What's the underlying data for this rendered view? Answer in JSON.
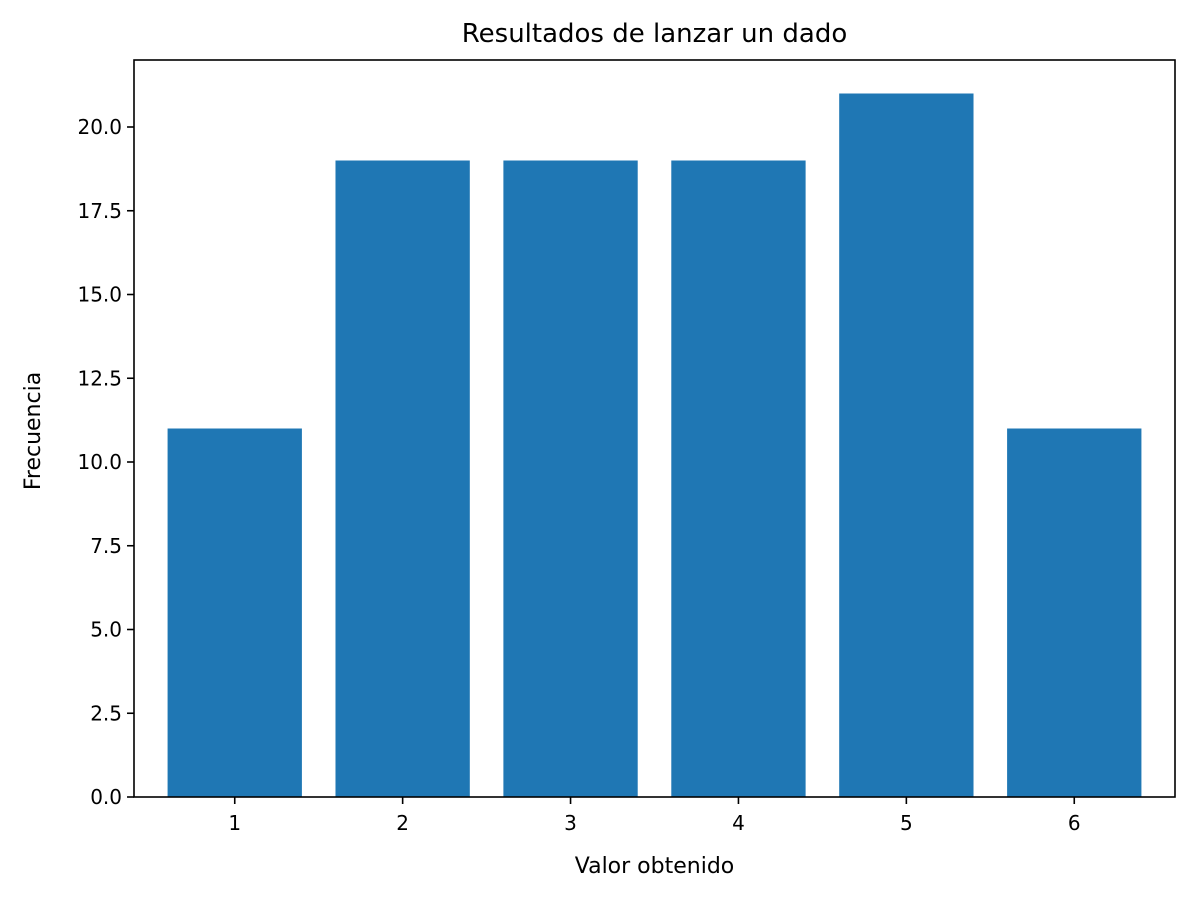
{
  "chart_data": {
    "type": "bar",
    "title": "Resultados de lanzar un dado",
    "xlabel": "Valor obtenido",
    "ylabel": "Frecuencia",
    "categories": [
      "1",
      "2",
      "3",
      "4",
      "5",
      "6"
    ],
    "values": [
      11,
      19,
      19,
      19,
      21,
      11
    ],
    "ylim": [
      0,
      22
    ],
    "yticks": [
      "0.0",
      "2.5",
      "5.0",
      "7.5",
      "10.0",
      "12.5",
      "15.0",
      "17.5",
      "20.0"
    ],
    "bar_color": "#1f77b4",
    "grid": false,
    "legend": false
  }
}
